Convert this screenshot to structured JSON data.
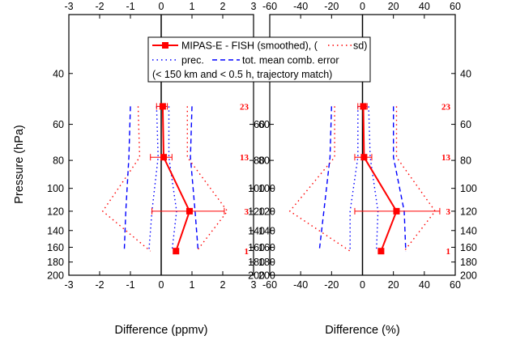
{
  "colors": {
    "axis": "#000000",
    "mean": "#ff0000",
    "sd": "#ff0000",
    "prec": "#0000ff",
    "tme": "#0000ff",
    "count": "#ff0000"
  },
  "y_axis_title": "Pressure (hPa)",
  "legend": {
    "entry1": "MIPAS-E - FISH (smoothed), (",
    "entry1_sd": "sd)",
    "entry2_prec": "prec.",
    "entry2_tme": "tot. mean comb. error",
    "entry3": "(< 150 km and < 0.5 h, trajectory match)"
  },
  "chart_data": [
    {
      "type": "line",
      "xlabel": "Difference (ppmv)",
      "ylabel": "Pressure (hPa)",
      "xlim": [
        -3,
        3
      ],
      "ylim": [
        200,
        25
      ],
      "y_scale": "log",
      "x_ticks": [
        -3,
        -2,
        -1,
        0,
        1,
        2,
        3
      ],
      "x_tick_labels": [
        "-3",
        "-2",
        "-1",
        "0",
        "1",
        "2",
        "3"
      ],
      "y_ticks": [
        40,
        60,
        80,
        100,
        120,
        140,
        160,
        180,
        200
      ],
      "y_tick_labels": [
        "40",
        "60",
        "80",
        "100",
        "120",
        "140",
        "160",
        "180",
        "200"
      ],
      "pressure": [
        52,
        78,
        120,
        165
      ],
      "mean_difference": [
        0.05,
        0.08,
        0.92,
        0.48
      ],
      "sd_minus": [
        -0.75,
        -0.7,
        -1.9,
        -0.35
      ],
      "sd_plus": [
        0.85,
        0.85,
        2.15,
        1.15
      ],
      "precision_minus": [
        -1.0,
        -1.05,
        -1.15,
        -1.2
      ],
      "precision_plus": [
        1.0,
        0.95,
        1.1,
        1.2
      ],
      "tme_minus": [
        -0.15,
        -0.1,
        -0.3,
        -0.4
      ],
      "tme_plus": [
        0.25,
        0.25,
        0.5,
        0.35
      ],
      "error_bar_low": [
        -0.15,
        -0.35,
        -0.3
      ],
      "error_bar_high": [
        0.2,
        0.35,
        2.05
      ],
      "error_bar_pressure": [
        52,
        78,
        120
      ],
      "counts": [
        "23",
        "13",
        "3",
        "1"
      ],
      "count_pressure": [
        52,
        78,
        120,
        165
      ]
    },
    {
      "type": "line",
      "xlabel": "Difference (%)",
      "ylabel": "",
      "xlim": [
        -60,
        60
      ],
      "ylim": [
        200,
        25
      ],
      "y_scale": "log",
      "x_ticks": [
        -60,
        -40,
        -20,
        0,
        20,
        40,
        60
      ],
      "x_tick_labels": [
        "-60",
        "-40",
        "-20",
        "0",
        "20",
        "40",
        "60"
      ],
      "y_ticks": [
        40,
        60,
        80,
        100,
        120,
        140,
        160,
        180,
        200
      ],
      "y_tick_labels": [
        "40",
        "60",
        "80",
        "100",
        "120",
        "140",
        "160",
        "180",
        "200"
      ],
      "pressure": [
        52,
        78,
        120,
        165
      ],
      "mean_difference": [
        0.5,
        1.0,
        22.0,
        12.0
      ],
      "sd_minus": [
        -18.0,
        -18.0,
        -47.0,
        -8.0
      ],
      "sd_plus": [
        22.0,
        22.0,
        47.0,
        27.0
      ],
      "precision_minus": [
        -20.0,
        -21.0,
        -25.0,
        -28.0
      ],
      "precision_plus": [
        20.0,
        20.0,
        27.0,
        28.0
      ],
      "tme_minus": [
        -3.0,
        -3.0,
        -8.0,
        -8.0
      ],
      "tme_plus": [
        4.0,
        5.0,
        10.0,
        9.0
      ],
      "error_bar_low": [
        -3.0,
        -5.0,
        -5.0
      ],
      "error_bar_high": [
        3.0,
        6.0,
        50.0
      ],
      "error_bar_pressure": [
        52,
        78,
        120
      ],
      "counts": [
        "23",
        "13",
        "3",
        "1"
      ],
      "count_pressure": [
        52,
        78,
        120,
        165
      ]
    }
  ]
}
